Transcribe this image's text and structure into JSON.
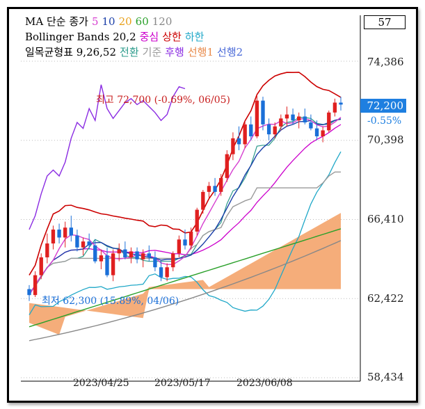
{
  "legend": {
    "ma_title": "MA 단순 종가",
    "ma_periods": [
      "5",
      "10",
      "20",
      "60",
      "120"
    ],
    "bb_title": "Bollinger Bands 20,2",
    "bb_mid": "중심",
    "bb_upper": "상한",
    "bb_lower": "하한",
    "ichi_title": "일목균형표 9,26,52",
    "ichi_conv": "전환",
    "ichi_base": "기준",
    "ichi_lag": "후행",
    "ichi_spanA": "선행1",
    "ichi_spanB": "선행2"
  },
  "badge": "57",
  "current": {
    "price": "72,200",
    "change": "-0.55%"
  },
  "annotations": {
    "high": "최고 72,700 (-0.69%, 06/05)",
    "low": "최저 62,300 (15.89%, 04/06)"
  },
  "colors": {
    "ma5": "#d63fd0",
    "ma10": "#1a3ea8",
    "ma20": "#e8a01a",
    "ma60": "#2aa02a",
    "ma120": "#888888",
    "bb": "#cc0000",
    "bb_mid": "#cc00cc",
    "bb_lower": "#20a8c8",
    "conv": "#2a9a8a",
    "base": "#9a9a9a",
    "lag": "#8a2be2",
    "spanA_cloud": "#f4a46c",
    "spanB_cloud": "#6f8fe8",
    "up": "#e02020",
    "down": "#1a6fd8",
    "accent": "#1e7fe0"
  },
  "chart_data": {
    "type": "candlestick",
    "ylim": [
      58434,
      74386
    ],
    "yticks": [
      "74,386",
      "70,398",
      "66,410",
      "62,422",
      "58,434"
    ],
    "ytick_values": [
      74386,
      70398,
      66410,
      62422,
      58434
    ],
    "xticks": [
      "2023/04/25",
      "2023/05/17",
      "2023/06/08"
    ],
    "candles": [
      [
        62900,
        63100,
        62300,
        62600
      ],
      [
        62600,
        63800,
        62500,
        63600
      ],
      [
        63600,
        64700,
        63400,
        64500
      ],
      [
        64500,
        65700,
        64200,
        65200
      ],
      [
        65200,
        66100,
        64900,
        65900
      ],
      [
        65900,
        66200,
        65200,
        65500
      ],
      [
        65500,
        66300,
        65000,
        66000
      ],
      [
        66000,
        66600,
        65300,
        65600
      ],
      [
        65600,
        65900,
        64800,
        65000
      ],
      [
        65000,
        65500,
        64600,
        65300
      ],
      [
        65300,
        65700,
        64900,
        65100
      ],
      [
        65100,
        65400,
        64200,
        64300
      ],
      [
        64300,
        64900,
        63900,
        64600
      ],
      [
        64600,
        65000,
        63500,
        63600
      ],
      [
        63600,
        64900,
        63300,
        64700
      ],
      [
        64700,
        65200,
        64300,
        64900
      ],
      [
        64900,
        65300,
        64400,
        64500
      ],
      [
        64500,
        65000,
        64200,
        64800
      ],
      [
        64800,
        65000,
        64200,
        64400
      ],
      [
        64400,
        64900,
        64000,
        64700
      ],
      [
        64700,
        65100,
        64300,
        64500
      ],
      [
        64500,
        64800,
        63800,
        64000
      ],
      [
        64000,
        64300,
        63300,
        63500
      ],
      [
        63500,
        64200,
        63300,
        64000
      ],
      [
        64000,
        64800,
        63800,
        64700
      ],
      [
        64700,
        65600,
        64500,
        65400
      ],
      [
        65400,
        65900,
        64900,
        65100
      ],
      [
        65100,
        66000,
        64900,
        65800
      ],
      [
        65800,
        67000,
        65600,
        66900
      ],
      [
        66900,
        67900,
        66700,
        67800
      ],
      [
        67800,
        68300,
        67500,
        68100
      ],
      [
        68100,
        68500,
        67600,
        67800
      ],
      [
        67800,
        68700,
        67600,
        68500
      ],
      [
        68500,
        69900,
        68300,
        69700
      ],
      [
        69700,
        70800,
        69400,
        70500
      ],
      [
        70500,
        71100,
        69900,
        70200
      ],
      [
        70200,
        71400,
        70000,
        71200
      ],
      [
        71200,
        71600,
        70400,
        70600
      ],
      [
        70600,
        72700,
        70500,
        72400
      ],
      [
        72400,
        72600,
        70900,
        71200
      ],
      [
        71200,
        71500,
        70400,
        70700
      ],
      [
        70700,
        71300,
        70500,
        71100
      ],
      [
        71100,
        71700,
        70900,
        71500
      ],
      [
        71500,
        72100,
        71100,
        71700
      ],
      [
        71700,
        72000,
        71200,
        71400
      ],
      [
        71400,
        71800,
        71000,
        71600
      ],
      [
        71600,
        72000,
        71200,
        71300
      ],
      [
        71300,
        71700,
        70900,
        71000
      ],
      [
        71000,
        71400,
        70400,
        70600
      ],
      [
        70600,
        71100,
        70300,
        70900
      ],
      [
        70900,
        71900,
        70800,
        71800
      ],
      [
        71800,
        72500,
        71600,
        72300
      ],
      [
        72300,
        72600,
        71900,
        72200
      ]
    ]
  }
}
